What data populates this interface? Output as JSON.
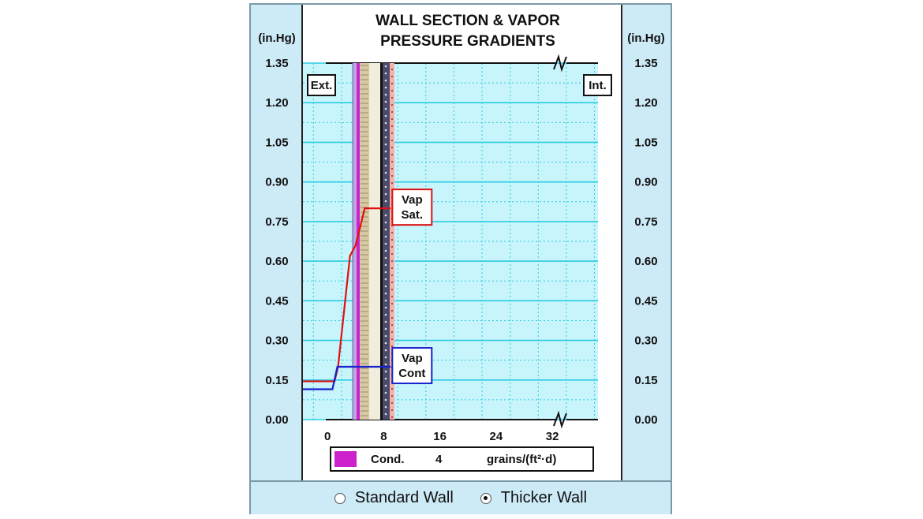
{
  "chart_data": {
    "type": "line",
    "title_lines": [
      "WALL SECTION & VAPOR",
      "PRESSURE GRADIENTS"
    ],
    "y_unit": "(in.Hg)",
    "y_ticks": [
      "1.35",
      "1.20",
      "1.05",
      "0.90",
      "0.75",
      "0.60",
      "0.45",
      "0.30",
      "0.15",
      "0.00"
    ],
    "y_tick_values": [
      1.35,
      1.2,
      1.05,
      0.9,
      0.75,
      0.6,
      0.45,
      0.3,
      0.15,
      0.0
    ],
    "ylim": [
      0,
      1.35
    ],
    "x_ticks": [
      "0",
      "8",
      "16",
      "24",
      "32"
    ],
    "x_tick_values": [
      0,
      8,
      16,
      24,
      32
    ],
    "xlim": [
      -3.5,
      38.5
    ],
    "grid": true,
    "exterior_label": "Ext.",
    "interior_label": "Int.",
    "series": [
      {
        "name": "Vap Sat.",
        "color": "#dd1111",
        "points": [
          [
            -3.5,
            0.145
          ],
          [
            1.0,
            0.145
          ],
          [
            1.5,
            0.2
          ],
          [
            3.2,
            0.62
          ],
          [
            4.0,
            0.66
          ],
          [
            5.3,
            0.8
          ],
          [
            9.0,
            0.8
          ]
        ]
      },
      {
        "name": "Vap Cont",
        "color": "#1a22cc",
        "points": [
          [
            -3.5,
            0.115
          ],
          [
            0.7,
            0.115
          ],
          [
            1.4,
            0.2
          ],
          [
            9.0,
            0.2
          ]
        ]
      }
    ],
    "callouts": [
      {
        "lines": [
          "Vap",
          "Sat."
        ],
        "color": "#dd1111"
      },
      {
        "lines": [
          "Vap",
          "Cont"
        ],
        "color": "#1a22cc"
      }
    ],
    "condensation": {
      "label": "Cond.",
      "value": "4",
      "unit": "grains/(ft²·d)",
      "swatch_color": "#cc22cc"
    }
  },
  "options": {
    "standard_label": "Standard Wall",
    "thicker_label": "Thicker Wall",
    "selected": "thicker"
  }
}
